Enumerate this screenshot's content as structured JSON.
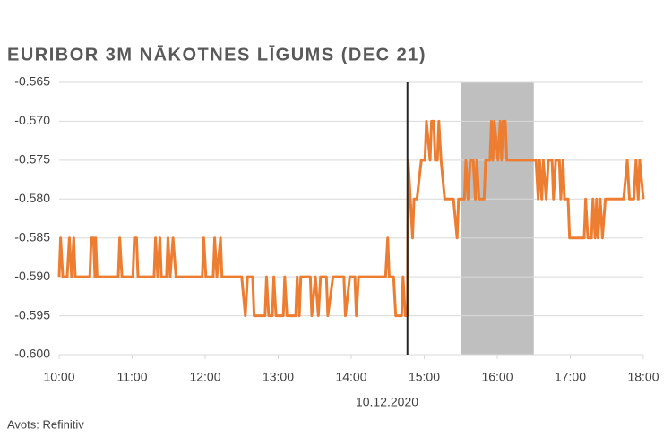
{
  "chart_data": {
    "type": "line",
    "title": "EURIBOR 3M NĀKOTNES LĪGUMS (DEC 21)",
    "x_label": "10.12.2020",
    "source": "Avots: Refinitiv",
    "color": "#ED7D31",
    "x": [
      10.0,
      10.02,
      10.05,
      10.11,
      10.14,
      10.17,
      10.2,
      10.22,
      10.42,
      10.44,
      10.47,
      10.49,
      10.5,
      10.52,
      10.81,
      10.83,
      10.86,
      11.01,
      11.03,
      11.06,
      11.08,
      11.3,
      11.32,
      11.35,
      11.38,
      11.4,
      11.47,
      11.49,
      11.52,
      11.56,
      11.6,
      11.96,
      11.98,
      12.01,
      12.11,
      12.13,
      12.16,
      12.21,
      12.23,
      12.5,
      12.55,
      12.58,
      12.65,
      12.67,
      12.82,
      12.84,
      12.87,
      12.92,
      12.94,
      12.97,
      13.07,
      13.09,
      13.12,
      13.24,
      13.26,
      13.29,
      13.31,
      13.44,
      13.46,
      13.51,
      13.55,
      13.58,
      13.66,
      13.68,
      13.75,
      13.8,
      13.9,
      13.92,
      13.98,
      14.05,
      14.07,
      14.1,
      14.47,
      14.5,
      14.52,
      14.58,
      14.61,
      14.69,
      14.71,
      14.74,
      14.77,
      14.78,
      14.81,
      14.84,
      14.86,
      14.9,
      14.96,
      15.01,
      15.03,
      15.08,
      15.1,
      15.13,
      15.15,
      15.18,
      15.2,
      15.23,
      15.28,
      15.4,
      15.45,
      15.47,
      15.55,
      15.57,
      15.6,
      15.63,
      15.67,
      15.7,
      15.72,
      15.75,
      15.82,
      15.84,
      15.9,
      15.92,
      15.94,
      15.96,
      16.01,
      16.04,
      16.06,
      16.08,
      16.11,
      16.13,
      16.53,
      16.56,
      16.58,
      16.61,
      16.63,
      16.67,
      16.7,
      16.75,
      16.77,
      16.8,
      16.85,
      16.87,
      16.9,
      16.92,
      16.97,
      16.99,
      17.19,
      17.21,
      17.24,
      17.29,
      17.31,
      17.34,
      17.36,
      17.38,
      17.41,
      17.44,
      17.48,
      17.73,
      17.78,
      17.81,
      17.87,
      17.9,
      17.93,
      17.95,
      18.0
    ],
    "values": [
      -0.59,
      -0.585,
      -0.59,
      -0.59,
      -0.585,
      -0.59,
      -0.585,
      -0.59,
      -0.59,
      -0.585,
      -0.585,
      -0.59,
      -0.585,
      -0.59,
      -0.59,
      -0.585,
      -0.59,
      -0.59,
      -0.585,
      -0.585,
      -0.59,
      -0.59,
      -0.585,
      -0.59,
      -0.585,
      -0.59,
      -0.59,
      -0.585,
      -0.59,
      -0.585,
      -0.59,
      -0.59,
      -0.585,
      -0.59,
      -0.59,
      -0.585,
      -0.59,
      -0.585,
      -0.59,
      -0.59,
      -0.595,
      -0.59,
      -0.59,
      -0.595,
      -0.595,
      -0.59,
      -0.595,
      -0.595,
      -0.59,
      -0.595,
      -0.595,
      -0.59,
      -0.595,
      -0.595,
      -0.59,
      -0.595,
      -0.59,
      -0.59,
      -0.595,
      -0.59,
      -0.595,
      -0.59,
      -0.59,
      -0.595,
      -0.59,
      -0.59,
      -0.59,
      -0.595,
      -0.59,
      -0.59,
      -0.595,
      -0.59,
      -0.59,
      -0.585,
      -0.59,
      -0.59,
      -0.595,
      -0.595,
      -0.59,
      -0.595,
      -0.595,
      -0.575,
      -0.58,
      -0.585,
      -0.58,
      -0.58,
      -0.575,
      -0.575,
      -0.57,
      -0.575,
      -0.57,
      -0.57,
      -0.575,
      -0.575,
      -0.57,
      -0.575,
      -0.58,
      -0.58,
      -0.585,
      -0.58,
      -0.58,
      -0.575,
      -0.58,
      -0.575,
      -0.575,
      -0.58,
      -0.575,
      -0.58,
      -0.58,
      -0.575,
      -0.575,
      -0.57,
      -0.575,
      -0.57,
      -0.575,
      -0.57,
      -0.575,
      -0.57,
      -0.57,
      -0.575,
      -0.575,
      -0.58,
      -0.575,
      -0.58,
      -0.575,
      -0.58,
      -0.575,
      -0.575,
      -0.58,
      -0.575,
      -0.575,
      -0.58,
      -0.575,
      -0.58,
      -0.58,
      -0.585,
      -0.585,
      -0.58,
      -0.585,
      -0.585,
      -0.58,
      -0.585,
      -0.58,
      -0.585,
      -0.58,
      -0.585,
      -0.58,
      -0.58,
      -0.575,
      -0.58,
      -0.58,
      -0.575,
      -0.58,
      -0.575,
      -0.58
    ],
    "xlim": [
      10,
      18
    ],
    "xticks": [
      {
        "value": 10,
        "label": "10:00"
      },
      {
        "value": 11,
        "label": "11:00"
      },
      {
        "value": 12,
        "label": "12:00"
      },
      {
        "value": 13,
        "label": "13:00"
      },
      {
        "value": 14,
        "label": "14:00"
      },
      {
        "value": 15,
        "label": "15:00"
      },
      {
        "value": 16,
        "label": "16:00"
      },
      {
        "value": 17,
        "label": "17:00"
      },
      {
        "value": 18,
        "label": "18:00"
      }
    ],
    "ylim": [
      -0.6,
      -0.565
    ],
    "yticks": [
      -0.565,
      {
        "value": -0.57,
        "label": "-0.570"
      },
      -0.575,
      {
        "value": -0.58,
        "label": "-0.580"
      },
      -0.585,
      {
        "value": -0.59,
        "label": "-0.590"
      },
      -0.595,
      {
        "value": -0.6,
        "label": "-0.600"
      }
    ],
    "grid": true,
    "vline": 14.77,
    "shade": [
      15.5,
      16.5
    ]
  }
}
